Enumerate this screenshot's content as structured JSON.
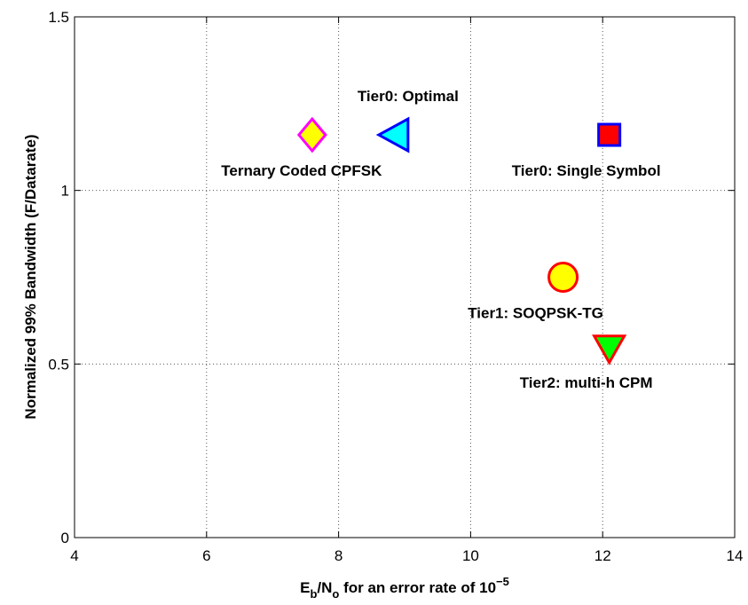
{
  "chart_data": {
    "type": "scatter",
    "xlabel_parts": [
      "E",
      "b",
      "/N",
      "o",
      " for an error rate of 10",
      "−5"
    ],
    "ylabel": "Normalized 99% Bandwidth (F/Datarate)",
    "xlim": [
      4,
      14
    ],
    "xticks": [
      4,
      6,
      8,
      10,
      12,
      14
    ],
    "ylim": [
      0,
      1.5
    ],
    "yticks": [
      0,
      0.5,
      1,
      1.5
    ],
    "grid": true,
    "series": [
      {
        "name": "Ternary Coded CPFSK",
        "marker": "diamond",
        "color": "#ffff00",
        "edgecolor": "#ff00ff",
        "x": [
          7.6
        ],
        "values": [
          1.16
        ]
      },
      {
        "name": "Tier0: Optimal",
        "marker": "triangle-left",
        "color": "#00ffff",
        "edgecolor": "#0000ff",
        "x": [
          8.85
        ],
        "values": [
          1.16
        ]
      },
      {
        "name": "Tier0: Single Symbol",
        "marker": "square",
        "color": "#ff0000",
        "edgecolor": "#0000ff",
        "x": [
          12.1
        ],
        "values": [
          1.16
        ]
      },
      {
        "name": "Tier1: SOQPSK-TG",
        "marker": "circle",
        "color": "#ffff00",
        "edgecolor": "#ff0000",
        "x": [
          11.4
        ],
        "values": [
          0.75
        ]
      },
      {
        "name": "Tier2: multi-h CPM",
        "marker": "triangle-down",
        "color": "#00ff00",
        "edgecolor": "#ff0000",
        "x": [
          12.1
        ],
        "values": [
          0.55
        ]
      }
    ]
  }
}
